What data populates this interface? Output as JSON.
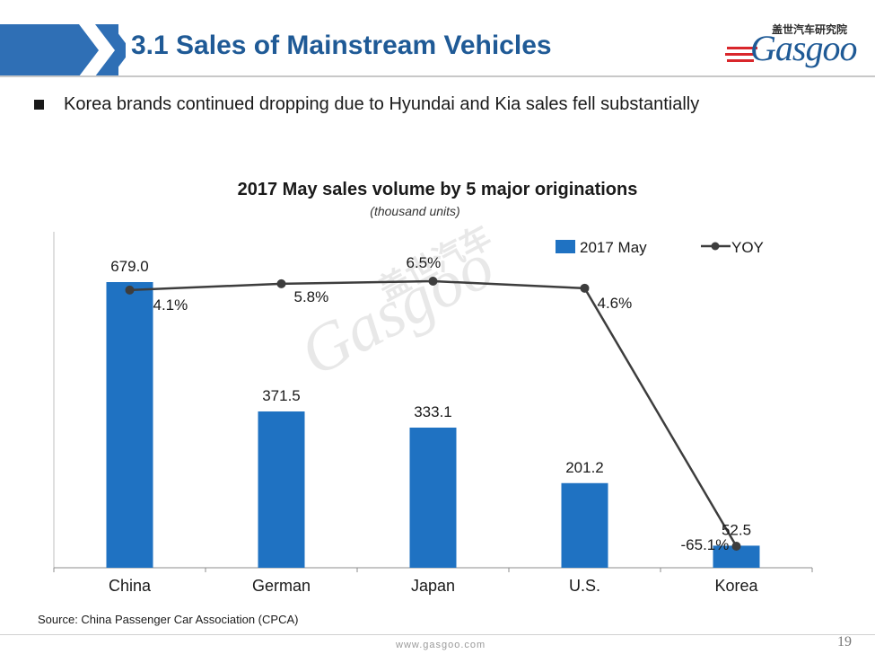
{
  "slide": {
    "title": "3.1 Sales of Mainstream Vehicles",
    "bullet": "Korea brands continued dropping due to Hyundai and Kia sales fell substantially",
    "source": "Source: China Passenger Car Association (CPCA)",
    "footer_url": "www.gasgoo.com",
    "page_number": "19",
    "accent_color": "#2f6fb5"
  },
  "logo": {
    "chinese_text": "盖世汽车研究院",
    "word": "Gasgoo"
  },
  "watermark": {
    "chinese_text": "盖世汽车",
    "word": "Gasgoo"
  },
  "chart_data": {
    "type": "bar",
    "title": "2017 May sales volume by 5 major originations",
    "subtitle": "(thousand units)",
    "categories": [
      "China",
      "German",
      "Japan",
      "U.S.",
      "Korea"
    ],
    "series": [
      {
        "name": "2017 May",
        "kind": "bar",
        "color": "#1f72c2",
        "values": [
          679.0,
          371.5,
          333.1,
          201.2,
          52.5
        ],
        "labels": [
          "679.0",
          "371.5",
          "333.1",
          "201.2",
          "52.5"
        ]
      },
      {
        "name": "YOY",
        "kind": "line",
        "color": "#3d3d3d",
        "values": [
          4.1,
          5.8,
          6.5,
          4.6,
          -65.1
        ],
        "labels": [
          "4.1%",
          "5.8%",
          "6.5%",
          "4.6%",
          "-65.1%"
        ]
      }
    ],
    "ylim_primary": [
      0,
      750
    ],
    "ylim_secondary": [
      -70,
      20
    ],
    "legend_position": "top-right",
    "grid": false
  }
}
